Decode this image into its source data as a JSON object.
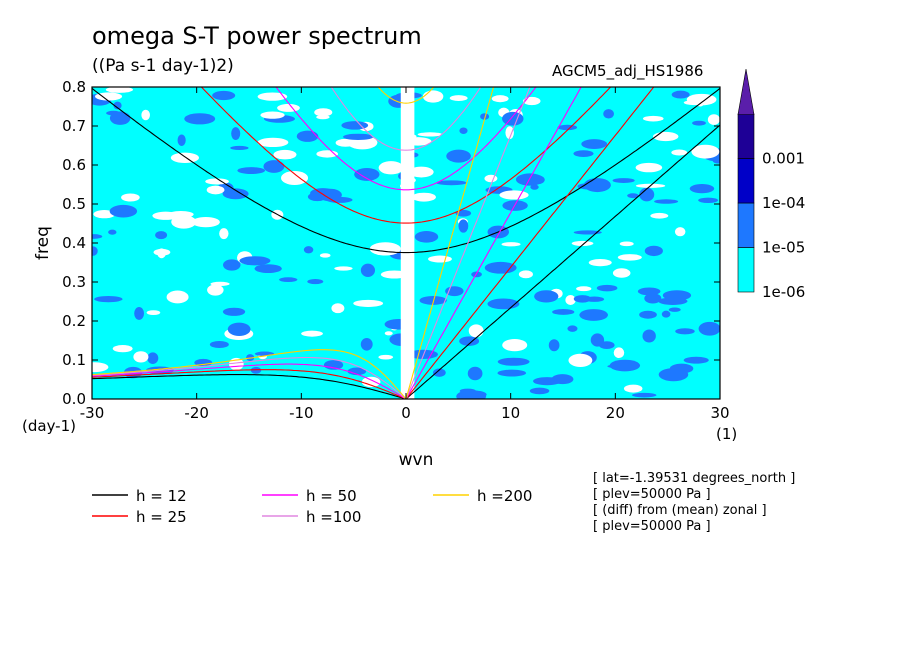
{
  "title": "omega S-T power spectrum",
  "subtitle": "((Pa s-1 day-1)2)",
  "run_name": "AGCM5_adj_HS1986",
  "colors": {
    "level_1e-06": "#00ffff",
    "level_1e-05": "#1e78ff",
    "level_1e-04": "#0000c8",
    "level_0.001": "#1e0096",
    "over": "#5a1eaa",
    "h12": "#000000",
    "h25": "#ff0000",
    "h50": "#ff00ff",
    "h100": "#e187e1",
    "h200": "#ffd200"
  },
  "chart_data": {
    "type": "heatmap",
    "title": "omega S-T power spectrum",
    "subtitle": "((Pa s-1 day-1)2)",
    "xlabel": "wvn",
    "ylabel": "freq",
    "x_unit": "(1)",
    "y_unit": "(day-1)",
    "xlim": [
      -30,
      30
    ],
    "ylim": [
      0,
      0.8
    ],
    "xticks": [
      "-30",
      "-20",
      "-10",
      "0",
      "10",
      "20",
      "30"
    ],
    "yticks": [
      "0.0",
      "0.1",
      "0.2",
      "0.3",
      "0.4",
      "0.5",
      "0.6",
      "0.7",
      "0.8"
    ],
    "grid": false,
    "colorbar": {
      "labels": [
        "1e-06",
        "1e-05",
        "1e-04",
        "0.001"
      ],
      "colors": [
        "#00ffff",
        "#1e78ff",
        "#0000c8",
        "#1e0096",
        "#5a1eaa"
      ]
    },
    "dispersion_curves": [
      {
        "name": "h = 12",
        "equivalent_depth_m": 12,
        "color": "#000000"
      },
      {
        "name": "h = 25",
        "equivalent_depth_m": 25,
        "color": "#ff0000"
      },
      {
        "name": "h = 50",
        "equivalent_depth_m": 50,
        "color": "#ff00ff"
      },
      {
        "name": "h =100",
        "equivalent_depth_m": 100,
        "color": "#e187e1"
      },
      {
        "name": "h =200",
        "equivalent_depth_m": 200,
        "color": "#ffd200"
      }
    ],
    "info": [
      "[ lat=-1.39531 degrees_north ]",
      "[ plev=50000 Pa ]",
      "[ (diff) from (mean) zonal ]",
      "[ plev=50000 Pa ]"
    ]
  }
}
